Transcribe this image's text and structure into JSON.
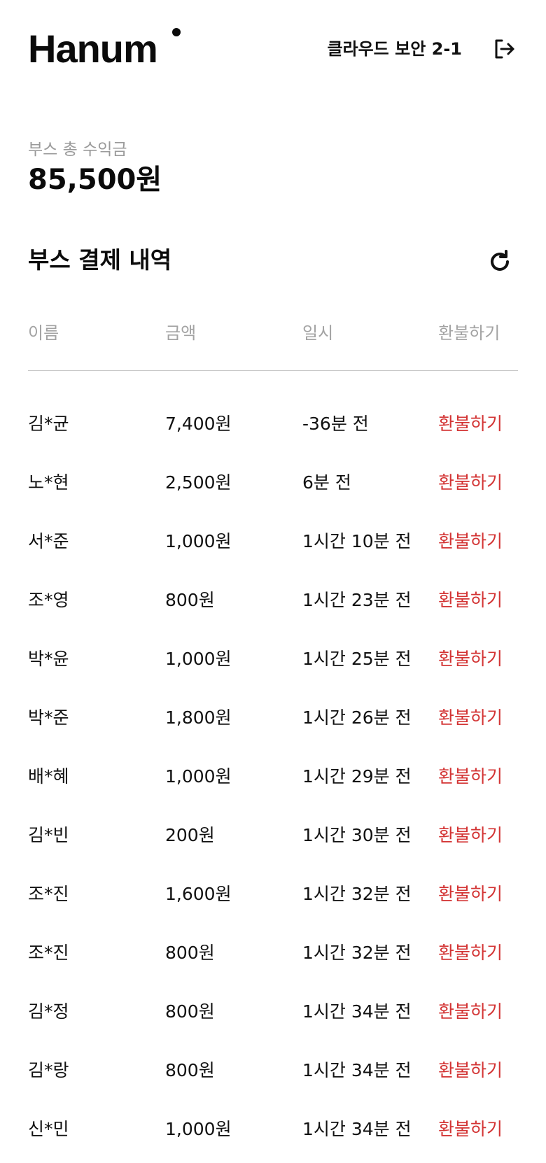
{
  "header": {
    "logo_text": "Hanum",
    "booth_name": "클라우드 보안 2-1",
    "logout_icon": "logout-icon"
  },
  "revenue": {
    "label": "부스 총 수익금",
    "amount": "85,500원"
  },
  "payments": {
    "title": "부스 결제 내역",
    "refresh_icon": "refresh-icon",
    "columns": [
      "이름",
      "금액",
      "일시",
      "환불하기"
    ],
    "rows": [
      {
        "name": "김*균",
        "amount": "7,400원",
        "time": "-36분 전",
        "action": "환불하기"
      },
      {
        "name": "노*현",
        "amount": "2,500원",
        "time": "6분 전",
        "action": "환불하기"
      },
      {
        "name": "서*준",
        "amount": "1,000원",
        "time": "1시간 10분 전",
        "action": "환불하기"
      },
      {
        "name": "조*영",
        "amount": "800원",
        "time": "1시간 23분 전",
        "action": "환불하기"
      },
      {
        "name": "박*윤",
        "amount": "1,000원",
        "time": "1시간 25분 전",
        "action": "환불하기"
      },
      {
        "name": "박*준",
        "amount": "1,800원",
        "time": "1시간 26분 전",
        "action": "환불하기"
      },
      {
        "name": "배*혜",
        "amount": "1,000원",
        "time": "1시간 29분 전",
        "action": "환불하기"
      },
      {
        "name": "김*빈",
        "amount": "200원",
        "time": "1시간 30분 전",
        "action": "환불하기"
      },
      {
        "name": "조*진",
        "amount": "1,600원",
        "time": "1시간 32분 전",
        "action": "환불하기"
      },
      {
        "name": "조*진",
        "amount": "800원",
        "time": "1시간 32분 전",
        "action": "환불하기"
      },
      {
        "name": "김*정",
        "amount": "800원",
        "time": "1시간 34분 전",
        "action": "환불하기"
      },
      {
        "name": "김*랑",
        "amount": "800원",
        "time": "1시간 34분 전",
        "action": "환불하기"
      },
      {
        "name": "신*민",
        "amount": "1,000원",
        "time": "1시간 34분 전",
        "action": "환불하기"
      }
    ]
  },
  "colors": {
    "text": "#111111",
    "muted": "#9a9a9a",
    "refund": "#d33434",
    "divider": "#c9c9c9"
  }
}
